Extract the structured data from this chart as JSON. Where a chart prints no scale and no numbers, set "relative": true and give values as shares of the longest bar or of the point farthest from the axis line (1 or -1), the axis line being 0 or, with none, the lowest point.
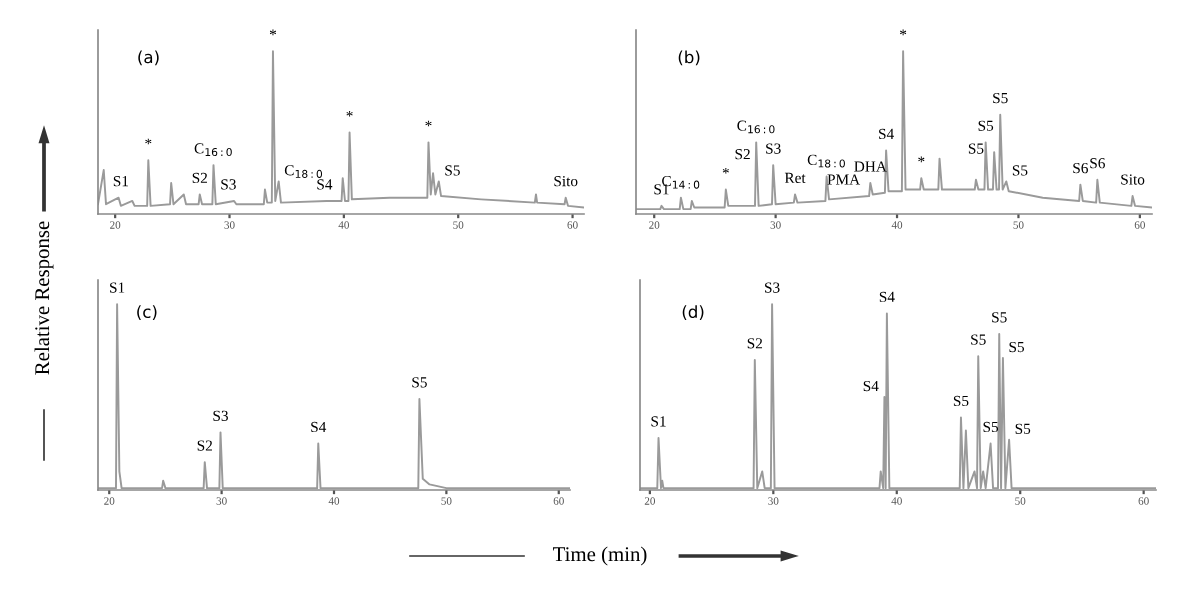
{
  "chart_data": [
    {
      "type": "line",
      "title": "(a)",
      "relative": true,
      "color": "#9a9a9a",
      "ylabel": "Relative Response",
      "xlim": [
        18.5,
        61
      ],
      "xticks": [
        20,
        30,
        40,
        50,
        60
      ],
      "x": [
        18.5,
        19.0,
        19.2,
        20.3,
        20.5,
        21.5,
        21.7,
        22.8,
        22.9,
        23.1,
        24.8,
        24.9,
        25.1,
        26.0,
        26.2,
        27.3,
        27.4,
        27.6,
        28.5,
        28.6,
        28.8,
        30.4,
        30.6,
        33.0,
        33.1,
        33.3,
        33.7,
        33.8,
        34.0,
        34.3,
        34.5,
        38.5,
        39.8,
        39.9,
        40.1,
        40.4,
        40.5,
        40.7,
        44,
        47.3,
        47.4,
        47.6,
        47.8,
        48.0,
        48.3,
        48.5,
        52,
        56.7,
        56.8,
        56.9,
        59.3,
        59.4,
        59.6,
        61
      ],
      "values": [
        0.06,
        0.27,
        0.06,
        0.1,
        0.05,
        0.08,
        0.05,
        0.05,
        0.33,
        0.05,
        0.06,
        0.19,
        0.06,
        0.12,
        0.06,
        0.06,
        0.12,
        0.06,
        0.06,
        0.3,
        0.06,
        0.08,
        0.06,
        0.06,
        0.15,
        0.07,
        0.07,
        1.0,
        0.08,
        0.2,
        0.07,
        0.08,
        0.08,
        0.22,
        0.08,
        0.08,
        0.5,
        0.09,
        0.1,
        0.1,
        0.44,
        0.12,
        0.25,
        0.12,
        0.2,
        0.11,
        0.09,
        0.07,
        0.12,
        0.07,
        0.06,
        0.1,
        0.05,
        0.04
      ],
      "annotations": [
        {
          "text": "S1",
          "x": 20.5,
          "y": 0.1
        },
        {
          "text": "S2",
          "x": 27.4,
          "y": 0.12
        },
        {
          "text": "C$_{16:0}$",
          "x": 28.6,
          "y": 0.3
        },
        {
          "text": "S3",
          "x": 29.9,
          "y": 0.08
        },
        {
          "text": "C$_{18:0}$",
          "x": 34.3,
          "y": 0.2
        },
        {
          "text": "S4",
          "x": 38.3,
          "y": 0.08
        },
        {
          "text": "S5",
          "x": 48.3,
          "y": 0.2
        },
        {
          "text": "Sito",
          "x": 59.4,
          "y": 0.1
        },
        {
          "text": "*",
          "x": 22.9,
          "y": 0.33
        },
        {
          "text": "*",
          "x": 33.8,
          "y": 1.0
        },
        {
          "text": "*",
          "x": 40.5,
          "y": 0.5
        },
        {
          "text": "*",
          "x": 47.4,
          "y": 0.44
        }
      ]
    },
    {
      "type": "line",
      "title": "(b)",
      "relative": true,
      "color": "#9a9a9a",
      "xlim": [
        18.5,
        61
      ],
      "xticks": [
        20,
        30,
        40,
        50,
        60
      ],
      "x": [
        18.5,
        20.5,
        20.6,
        20.8,
        22.1,
        22.2,
        22.4,
        23.0,
        23.1,
        23.3,
        25.8,
        25.9,
        26.1,
        28.3,
        28.4,
        28.6,
        29.7,
        29.8,
        30.0,
        31.5,
        31.6,
        31.8,
        34.1,
        34.2,
        34.4,
        37.7,
        37.8,
        38,
        39.0,
        39.1,
        39.3,
        40.4,
        40.5,
        40.7,
        41.9,
        42.0,
        42.2,
        43.4,
        43.5,
        43.7,
        46.4,
        46.5,
        46.7,
        47.2,
        47.3,
        47.5,
        47.9,
        48.0,
        48.2,
        48.4,
        48.5,
        48.7,
        49.0,
        49.2,
        52,
        55.0,
        55.1,
        55.3,
        56.4,
        56.5,
        56.7,
        59.3,
        59.4,
        59.6,
        61
      ],
      "values": [
        0.03,
        0.03,
        0.05,
        0.03,
        0.03,
        0.1,
        0.03,
        0.03,
        0.08,
        0.04,
        0.04,
        0.15,
        0.05,
        0.05,
        0.44,
        0.05,
        0.06,
        0.3,
        0.06,
        0.07,
        0.12,
        0.07,
        0.08,
        0.23,
        0.09,
        0.11,
        0.19,
        0.12,
        0.13,
        0.39,
        0.14,
        0.14,
        1.0,
        0.15,
        0.15,
        0.22,
        0.15,
        0.15,
        0.34,
        0.15,
        0.15,
        0.21,
        0.15,
        0.15,
        0.44,
        0.15,
        0.15,
        0.38,
        0.15,
        0.15,
        0.61,
        0.15,
        0.2,
        0.14,
        0.1,
        0.08,
        0.18,
        0.08,
        0.07,
        0.21,
        0.07,
        0.05,
        0.11,
        0.05,
        0.04
      ],
      "annotations": [
        {
          "text": "S1",
          "x": 20.6,
          "y": 0.05
        },
        {
          "text": "C$_{14:0}$",
          "x": 22.2,
          "y": 0.1
        },
        {
          "text": "S2",
          "x": 28.4,
          "y": 0.3
        },
        {
          "text": "C$_{16:0}$",
          "x": 28.4,
          "y": 0.44
        },
        {
          "text": "S3",
          "x": 29.8,
          "y": 0.3
        },
        {
          "text": "Ret",
          "x": 31.6,
          "y": 0.12
        },
        {
          "text": "C$_{18:0}$",
          "x": 34.2,
          "y": 0.23
        },
        {
          "text": "PMA",
          "x": 35.6,
          "y": 0.11
        },
        {
          "text": "DHA",
          "x": 37.8,
          "y": 0.19
        },
        {
          "text": "S4",
          "x": 39.1,
          "y": 0.39
        },
        {
          "text": "S5",
          "x": 46.5,
          "y": 0.3
        },
        {
          "text": "S5",
          "x": 47.3,
          "y": 0.44
        },
        {
          "text": "S5",
          "x": 48.5,
          "y": 0.61
        },
        {
          "text": "S5",
          "x": 49.0,
          "y": 0.2
        },
        {
          "text": "S6",
          "x": 55.1,
          "y": 0.18
        },
        {
          "text": "S6",
          "x": 56.5,
          "y": 0.21
        },
        {
          "text": "Sito",
          "x": 59.4,
          "y": 0.11
        },
        {
          "text": "*",
          "x": 25.9,
          "y": 0.15
        },
        {
          "text": "*",
          "x": 40.5,
          "y": 1.0
        },
        {
          "text": "*",
          "x": 42.0,
          "y": 0.22
        }
      ]
    },
    {
      "type": "line",
      "title": "(c)",
      "relative": true,
      "color": "#9a9a9a",
      "xlabel": "Time (min)",
      "xlim": [
        19,
        61
      ],
      "xticks": [
        20,
        30,
        40,
        50,
        60
      ],
      "x": [
        19,
        20.6,
        20.7,
        20.9,
        21.1,
        24.7,
        24.8,
        25.0,
        28.4,
        28.5,
        28.7,
        29.8,
        29.9,
        30.1,
        38.5,
        38.6,
        38.8,
        47.5,
        47.6,
        47.9,
        48.5,
        50,
        61
      ],
      "values": [
        0.01,
        0.01,
        1.0,
        0.1,
        0.01,
        0.01,
        0.05,
        0.01,
        0.01,
        0.15,
        0.01,
        0.01,
        0.31,
        0.01,
        0.01,
        0.25,
        0.01,
        0.01,
        0.49,
        0.06,
        0.03,
        0.01,
        0.01
      ],
      "annotations": [
        {
          "text": "S1",
          "x": 20.7,
          "y": 1.0
        },
        {
          "text": "S2",
          "x": 28.5,
          "y": 0.15
        },
        {
          "text": "S3",
          "x": 29.9,
          "y": 0.31
        },
        {
          "text": "S4",
          "x": 38.6,
          "y": 0.25
        },
        {
          "text": "S5",
          "x": 47.6,
          "y": 0.49
        }
      ]
    },
    {
      "type": "line",
      "title": "(d)",
      "relative": true,
      "color": "#9a9a9a",
      "xlim": [
        19.2,
        61
      ],
      "xticks": [
        20,
        30,
        40,
        50,
        60
      ],
      "x": [
        19.2,
        20.6,
        20.7,
        20.9,
        21.0,
        21.1,
        28.4,
        28.5,
        28.7,
        29.1,
        29.3,
        29.8,
        29.9,
        30.1,
        38.6,
        38.7,
        38.9,
        39.0,
        39.1,
        39.2,
        39.4,
        45.1,
        45.2,
        45.4,
        45.6,
        45.8,
        46.3,
        46.5,
        46.6,
        46.8,
        47.0,
        47.2,
        47.6,
        47.8,
        48.2,
        48.3,
        48.45,
        48.6,
        48.8,
        49.1,
        49.3,
        61
      ],
      "values": [
        0.01,
        0.01,
        0.28,
        0.01,
        0.05,
        0.01,
        0.01,
        0.7,
        0.01,
        0.1,
        0.01,
        0.01,
        1.0,
        0.01,
        0.01,
        0.1,
        0.01,
        0.5,
        0.01,
        0.95,
        0.01,
        0.01,
        0.39,
        0.01,
        0.32,
        0.01,
        0.1,
        0.01,
        0.72,
        0.01,
        0.1,
        0.01,
        0.25,
        0.01,
        0.01,
        0.84,
        0.01,
        0.71,
        0.01,
        0.27,
        0.01,
        0.01
      ],
      "annotations": [
        {
          "text": "S1",
          "x": 20.7,
          "y": 0.28
        },
        {
          "text": "S2",
          "x": 28.5,
          "y": 0.7
        },
        {
          "text": "S3",
          "x": 29.9,
          "y": 1.0
        },
        {
          "text": "S4",
          "x": 39.0,
          "y": 0.5
        },
        {
          "text": "S4",
          "x": 39.2,
          "y": 0.95
        },
        {
          "text": "S5",
          "x": 45.2,
          "y": 0.39
        },
        {
          "text": "S5",
          "x": 46.6,
          "y": 0.72
        },
        {
          "text": "S5",
          "x": 47.6,
          "y": 0.25
        },
        {
          "text": "S5",
          "x": 48.3,
          "y": 0.84
        },
        {
          "text": "S5",
          "x": 48.6,
          "y": 0.71
        },
        {
          "text": "S5",
          "x": 49.1,
          "y": 0.27
        }
      ]
    }
  ]
}
